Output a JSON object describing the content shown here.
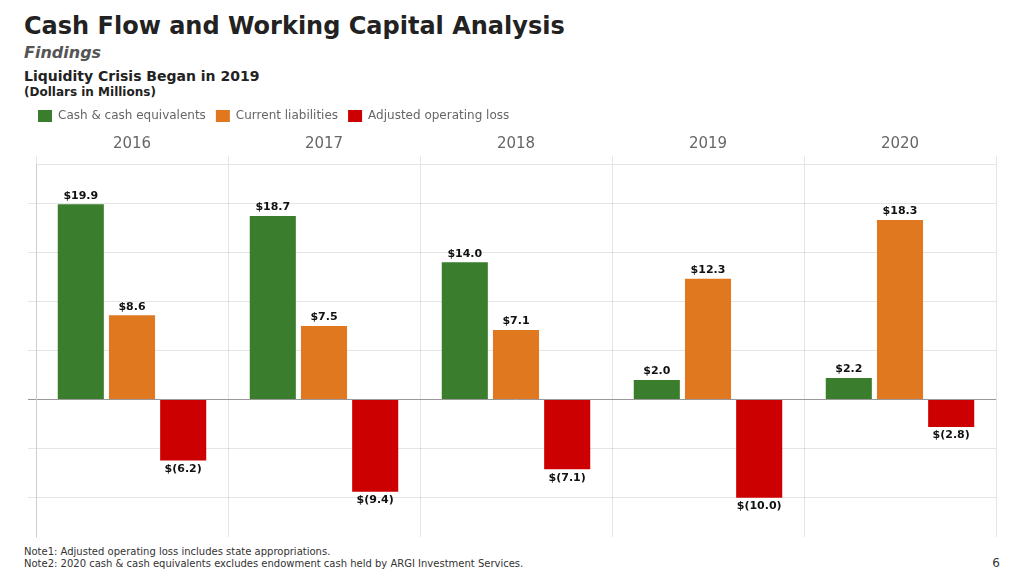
{
  "chart_data": {
    "type": "bar",
    "title": "Cash Flow and Working Capital Analysis",
    "subtitle": [
      "Findings",
      "Liquidity Crisis Began in 2019",
      "(Dollars in Millions)"
    ],
    "annotations": [
      "Note1: Adjusted operating loss includes state appropriations.",
      "Note2: 2020 cash & cash equivalents excludes endowment cash held by ARGI Investment Services.",
      "6"
    ],
    "categories": [
      "2016",
      "2017",
      "2018",
      "2019",
      "2020"
    ],
    "series": [
      {
        "name": "Cash & cash equivalents",
        "color": "#3a7d2c",
        "values": [
          19.9,
          18.7,
          14.0,
          2.0,
          2.2
        ],
        "value_labels": [
          "$19.9",
          "$18.7",
          "$14.0",
          "$2.0",
          "$2.2"
        ]
      },
      {
        "name": "Current liabilities",
        "color": "#e07820",
        "values": [
          8.6,
          7.5,
          7.1,
          12.3,
          18.3
        ],
        "value_labels": [
          "$8.6",
          "$7.5",
          "$7.1",
          "$12.3",
          "$18.3"
        ]
      },
      {
        "name": "Adjusted operating loss",
        "color": "#cc0000",
        "values": [
          -6.2,
          -9.4,
          -7.1,
          -10.0,
          -2.8
        ],
        "value_labels": [
          "$(6.2)",
          "$(9.4)",
          "$(7.1)",
          "$(10.0)",
          "$(2.8)"
        ]
      }
    ],
    "ylim": [
      -14,
      24
    ],
    "yticks": [
      -10,
      -5,
      0,
      5,
      10,
      15,
      20
    ],
    "grid": true,
    "legend": "upper left",
    "data_labels": true,
    "tick_labels": "x"
  }
}
